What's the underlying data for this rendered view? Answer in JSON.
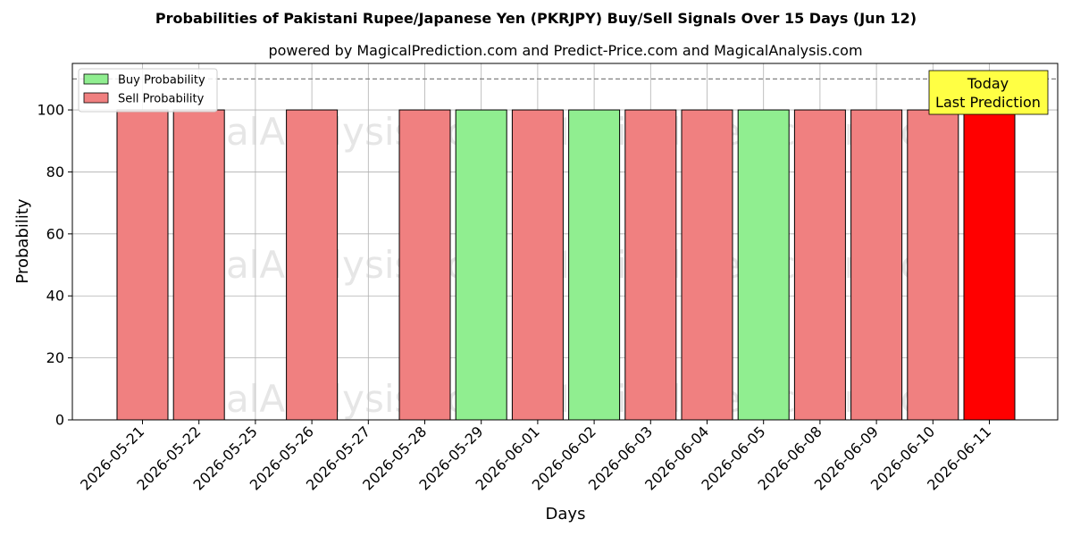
{
  "chart_data": {
    "type": "bar",
    "title": "Probabilities of Pakistani Rupee/Japanese Yen (PKRJPY) Buy/Sell Signals Over 15 Days (Jun 12)",
    "subtitle": "powered by MagicalPrediction.com and Predict-Price.com and MagicalAnalysis.com",
    "xlabel": "Days",
    "ylabel": "Probability",
    "ylim": [
      0,
      115
    ],
    "yticks": [
      0,
      20,
      40,
      60,
      80,
      100
    ],
    "grid": true,
    "reference_line": 110,
    "legend_position": "top-left",
    "categories": [
      "2026-05-21",
      "2026-05-22",
      "2026-05-25",
      "2026-05-26",
      "2026-05-27",
      "2026-05-28",
      "2026-05-29",
      "2026-06-01",
      "2026-06-02",
      "2026-06-03",
      "2026-06-04",
      "2026-06-05",
      "2026-06-08",
      "2026-06-09",
      "2026-06-10",
      "2026-06-11"
    ],
    "series": [
      {
        "name": "Buy Probability",
        "color": "#90ee90",
        "values": [
          0,
          0,
          0,
          0,
          0,
          0,
          100,
          0,
          100,
          0,
          0,
          100,
          0,
          0,
          0,
          0
        ]
      },
      {
        "name": "Sell Probability",
        "color": "#f08080",
        "values": [
          100,
          100,
          0,
          100,
          0,
          100,
          0,
          100,
          0,
          100,
          100,
          0,
          100,
          100,
          100,
          100
        ]
      }
    ],
    "highlight": {
      "category": "2026-06-11",
      "color": "#ff0000",
      "label_line1": "Today",
      "label_line2": "Last Prediction",
      "label_bg": "#ffff44"
    },
    "watermarks": [
      "MagicalAnalysis.com",
      "MagicalPrediction.com"
    ]
  }
}
